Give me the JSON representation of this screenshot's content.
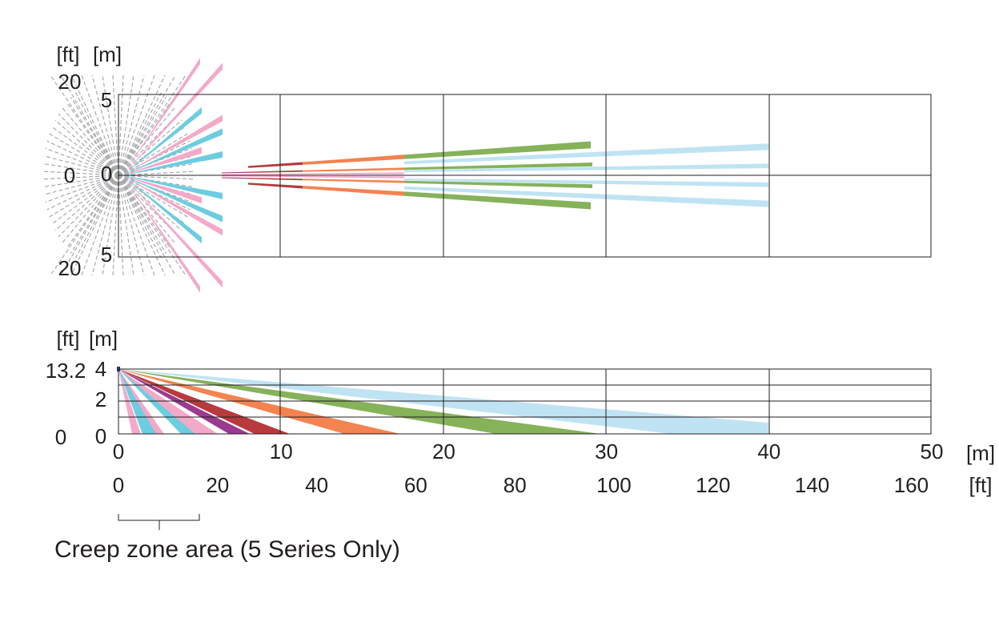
{
  "top_view": {
    "units": [
      "[ft]",
      "[m]"
    ],
    "ft_labels": [
      "20",
      "0",
      "20"
    ],
    "m_labels": [
      "5",
      "0",
      "5"
    ]
  },
  "side_view": {
    "units": [
      "[ft]",
      "[m]"
    ],
    "ft_labels": [
      "13.2",
      "0"
    ],
    "m_labels": [
      "4",
      "2",
      "0"
    ]
  },
  "x_axis": {
    "m_labels": [
      "0",
      "10",
      "20",
      "30",
      "40",
      "50"
    ],
    "m_unit": "[m]",
    "ft_labels": [
      "0",
      "20",
      "40",
      "60",
      "80",
      "100",
      "120",
      "140",
      "160"
    ],
    "ft_unit": "[ft]"
  },
  "caption": "Creep zone area (5 Series Only)"
}
